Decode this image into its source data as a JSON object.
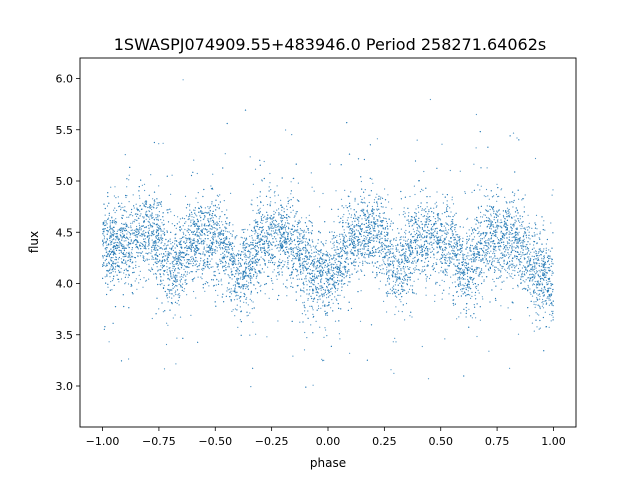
{
  "chart_data": {
    "type": "scatter",
    "title": "1SWASPJ074909.55+483946.0 Period 258271.64062s",
    "xlabel": "phase",
    "ylabel": "flux",
    "xlim": [
      -1.1,
      1.1
    ],
    "ylim": [
      2.6,
      6.2
    ],
    "x_ticks": [
      -1.0,
      -0.75,
      -0.5,
      -0.25,
      0.0,
      0.25,
      0.5,
      0.75,
      1.0
    ],
    "x_tick_labels": [
      "−1.00",
      "−0.75",
      "−0.50",
      "−0.25",
      "0.00",
      "0.25",
      "0.50",
      "0.75",
      "1.00"
    ],
    "y_ticks": [
      3.0,
      3.5,
      4.0,
      4.5,
      5.0,
      5.5,
      6.0
    ],
    "y_tick_labels": [
      "3.0",
      "3.5",
      "4.0",
      "4.5",
      "5.0",
      "5.5",
      "6.0"
    ],
    "grid": false,
    "legend": "none",
    "point_color": "#1f77b4",
    "series": [
      {
        "mean_flux_profile": {
          "phase": [
            -1.0,
            -0.9,
            -0.8,
            -0.75,
            -0.7,
            -0.6,
            -0.5,
            -0.45,
            -0.4,
            -0.3,
            -0.2,
            -0.15,
            -0.1,
            0.0,
            0.1,
            0.2,
            0.25,
            0.3,
            0.4,
            0.5,
            0.55,
            0.6,
            0.7,
            0.8,
            0.85,
            0.9,
            1.0
          ],
          "flux": [
            4.35,
            4.4,
            4.5,
            4.45,
            4.1,
            4.45,
            4.4,
            4.35,
            4.05,
            4.4,
            4.45,
            4.4,
            4.2,
            4.0,
            4.4,
            4.5,
            4.45,
            4.1,
            4.45,
            4.4,
            4.35,
            4.05,
            4.4,
            4.45,
            4.4,
            4.2,
            4.0
          ]
        }
      }
    ]
  }
}
